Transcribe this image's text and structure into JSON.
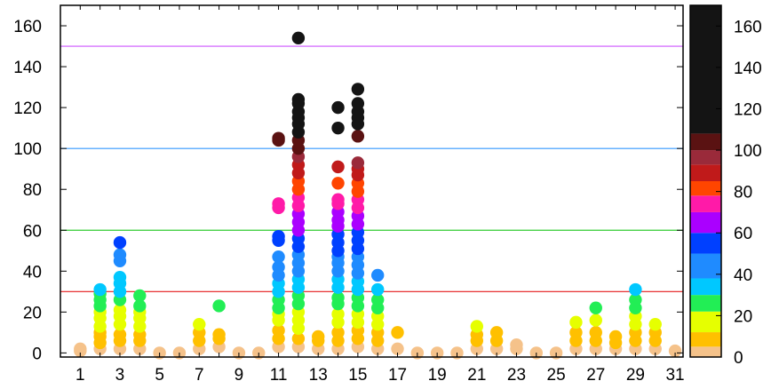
{
  "chart_data": {
    "type": "scatter",
    "title": "",
    "xlabel": "",
    "ylabel": "",
    "xlim": [
      0,
      31.4
    ],
    "ylim": [
      -2,
      170
    ],
    "grid": false,
    "x_ticks": [
      1,
      3,
      5,
      7,
      9,
      11,
      13,
      15,
      17,
      19,
      21,
      23,
      25,
      27,
      29,
      31
    ],
    "y_ticks": [
      0,
      20,
      40,
      60,
      80,
      100,
      120,
      140,
      160
    ],
    "reference_lines": [
      {
        "y": 30,
        "color": "#e4191c"
      },
      {
        "y": 60,
        "color": "#33cc33"
      },
      {
        "y": 100,
        "color": "#3399ff"
      },
      {
        "y": 150,
        "color": "#cc55ff"
      }
    ],
    "colorbar": {
      "range": [
        0,
        170
      ],
      "ticks": [
        0,
        20,
        40,
        60,
        80,
        100,
        120,
        140,
        160
      ],
      "bands": [
        {
          "from": 0,
          "to": 5,
          "color": "#f5c28a"
        },
        {
          "from": 5,
          "to": 12,
          "color": "#ffc000"
        },
        {
          "from": 12,
          "to": 22,
          "color": "#e6ff00"
        },
        {
          "from": 22,
          "to": 30,
          "color": "#22ee55"
        },
        {
          "from": 30,
          "to": 38,
          "color": "#00c8ff"
        },
        {
          "from": 38,
          "to": 50,
          "color": "#1f8bff"
        },
        {
          "from": 50,
          "to": 60,
          "color": "#0040ff"
        },
        {
          "from": 60,
          "to": 70,
          "color": "#aa00ff"
        },
        {
          "from": 70,
          "to": 78,
          "color": "#ff1aa8"
        },
        {
          "from": 78,
          "to": 85,
          "color": "#ff4500"
        },
        {
          "from": 85,
          "to": 93,
          "color": "#c01a1a"
        },
        {
          "from": 93,
          "to": 100,
          "color": "#9a2a3a"
        },
        {
          "from": 100,
          "to": 108,
          "color": "#5a1212"
        },
        {
          "from": 108,
          "to": 170,
          "color": "#141414"
        }
      ]
    },
    "points": [
      {
        "x": 1,
        "y": [
          1,
          2
        ]
      },
      {
        "x": 2,
        "y": [
          2,
          5,
          8,
          10,
          13,
          17,
          20,
          23,
          26,
          29,
          31
        ]
      },
      {
        "x": 3,
        "y": [
          2,
          6,
          9,
          14,
          18,
          21,
          26,
          30,
          34,
          37,
          45,
          48,
          54
        ]
      },
      {
        "x": 4,
        "y": [
          2,
          6,
          9,
          13,
          17,
          20,
          23,
          28
        ]
      },
      {
        "x": 5,
        "y": [
          0
        ]
      },
      {
        "x": 6,
        "y": [
          0
        ]
      },
      {
        "x": 7,
        "y": [
          2,
          6,
          10,
          14
        ]
      },
      {
        "x": 8,
        "y": [
          3,
          7,
          9,
          23
        ]
      },
      {
        "x": 9,
        "y": [
          0
        ]
      },
      {
        "x": 10,
        "y": [
          0
        ]
      },
      {
        "x": 11,
        "y": [
          3,
          7,
          11,
          16,
          19,
          22,
          26,
          30,
          34,
          38,
          42,
          47,
          55,
          57,
          71,
          73,
          104,
          105
        ]
      },
      {
        "x": 12,
        "y": [
          3,
          7,
          12,
          16,
          20,
          24,
          28,
          32,
          36,
          40,
          44,
          48,
          52,
          56,
          60,
          64,
          68,
          72,
          76,
          80,
          84,
          88,
          92,
          96,
          100,
          104,
          108,
          112,
          115,
          118,
          122,
          124,
          154
        ]
      },
      {
        "x": 13,
        "y": [
          2,
          6,
          8
        ]
      },
      {
        "x": 14,
        "y": [
          2,
          6,
          10,
          15,
          19,
          24,
          27,
          32,
          36,
          40,
          44,
          47,
          50,
          54,
          58,
          62,
          65,
          69,
          73,
          75,
          83,
          91,
          110,
          120
        ]
      },
      {
        "x": 15,
        "y": [
          3,
          7,
          11,
          15,
          19,
          23,
          27,
          31,
          35,
          39,
          43,
          47,
          51,
          55,
          59,
          63,
          67,
          71,
          75,
          79,
          83,
          87,
          90,
          93,
          106,
          112,
          115,
          118,
          122,
          129
        ]
      },
      {
        "x": 16,
        "y": [
          2,
          6,
          10,
          14,
          18,
          22,
          26,
          31,
          38
        ]
      },
      {
        "x": 17,
        "y": [
          2,
          10
        ]
      },
      {
        "x": 18,
        "y": [
          0
        ]
      },
      {
        "x": 19,
        "y": [
          0
        ]
      },
      {
        "x": 20,
        "y": [
          0
        ]
      },
      {
        "x": 21,
        "y": [
          2,
          6,
          9,
          13
        ]
      },
      {
        "x": 22,
        "y": [
          2,
          6,
          10
        ]
      },
      {
        "x": 23,
        "y": [
          2,
          4
        ]
      },
      {
        "x": 24,
        "y": [
          0
        ]
      },
      {
        "x": 25,
        "y": [
          0
        ]
      },
      {
        "x": 26,
        "y": [
          2,
          6,
          10,
          15
        ]
      },
      {
        "x": 27,
        "y": [
          2,
          6,
          10,
          16,
          22
        ]
      },
      {
        "x": 28,
        "y": [
          2,
          5,
          8
        ]
      },
      {
        "x": 29,
        "y": [
          2,
          6,
          10,
          14,
          18,
          22,
          26,
          31
        ]
      },
      {
        "x": 30,
        "y": [
          2,
          6,
          10,
          14
        ]
      },
      {
        "x": 31,
        "y": [
          1
        ]
      }
    ]
  }
}
